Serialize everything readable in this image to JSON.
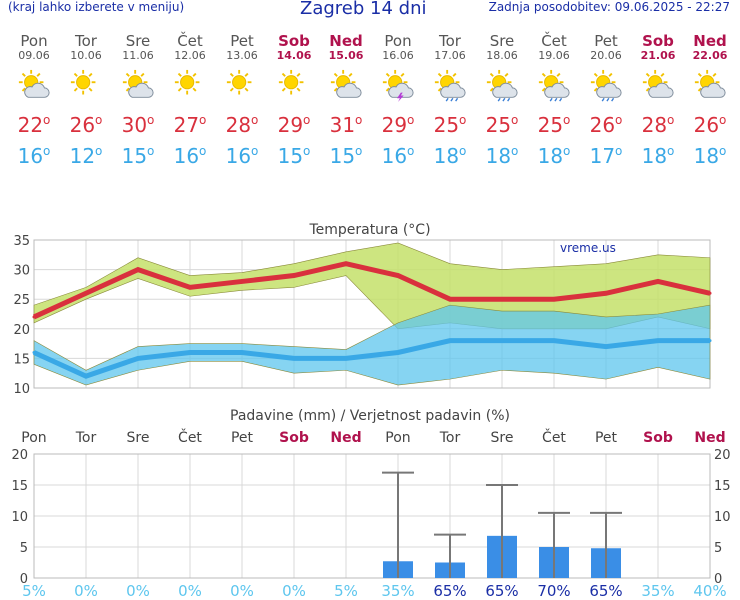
{
  "header": {
    "menu_hint": "(kraj lahko izberete v meniju)",
    "title": "Zagreb 14 dni",
    "updated": "Zadnja posodobitev: 09.06.2025 - 22:27"
  },
  "days": [
    {
      "name": "Pon",
      "date": "09.06",
      "weekend": false,
      "icon": "sun-cloud-icon",
      "max": "22",
      "min": "16"
    },
    {
      "name": "Tor",
      "date": "10.06",
      "weekend": false,
      "icon": "sun-icon",
      "max": "26",
      "min": "12"
    },
    {
      "name": "Sre",
      "date": "11.06",
      "weekend": false,
      "icon": "sun-cloud-icon",
      "max": "30",
      "min": "15"
    },
    {
      "name": "Čet",
      "date": "12.06",
      "weekend": false,
      "icon": "sun-icon",
      "max": "27",
      "min": "16"
    },
    {
      "name": "Pet",
      "date": "13.06",
      "weekend": false,
      "icon": "sun-icon",
      "max": "28",
      "min": "16"
    },
    {
      "name": "Sob",
      "date": "14.06",
      "weekend": true,
      "icon": "sun-icon",
      "max": "29",
      "min": "15"
    },
    {
      "name": "Ned",
      "date": "15.06",
      "weekend": true,
      "icon": "sun-cloud-icon",
      "max": "31",
      "min": "15"
    },
    {
      "name": "Pon",
      "date": "16.06",
      "weekend": false,
      "icon": "thunderstorm-icon",
      "max": "29",
      "min": "16"
    },
    {
      "name": "Tor",
      "date": "17.06",
      "weekend": false,
      "icon": "sun-rain-icon",
      "max": "25",
      "min": "18"
    },
    {
      "name": "Sre",
      "date": "18.06",
      "weekend": false,
      "icon": "sun-rain-icon",
      "max": "25",
      "min": "18"
    },
    {
      "name": "Čet",
      "date": "19.06",
      "weekend": false,
      "icon": "sun-rain-icon",
      "max": "25",
      "min": "18"
    },
    {
      "name": "Pet",
      "date": "20.06",
      "weekend": false,
      "icon": "sun-rain-icon",
      "max": "26",
      "min": "17"
    },
    {
      "name": "Sob",
      "date": "21.06",
      "weekend": true,
      "icon": "sun-cloud-icon",
      "max": "28",
      "min": "18"
    },
    {
      "name": "Ned",
      "date": "22.06",
      "weekend": true,
      "icon": "sun-cloud-icon",
      "max": "26",
      "min": "18"
    }
  ],
  "degree_symbol": "o",
  "colors": {
    "max": "#d9303d",
    "min": "#39a8e6",
    "max_band": "#c4e06a",
    "min_band": "#5ec6ee",
    "overlap": "#7fc87e",
    "precip": "#3a8ee6",
    "whisker": "#777777",
    "weekend": "#b0124d"
  },
  "chart_data": [
    {
      "type": "line",
      "title": "Temperatura (°C)",
      "watermark": "vreme.us",
      "ylim": [
        10,
        35
      ],
      "yticks": [
        "10",
        "15",
        "20",
        "25",
        "30",
        "35"
      ],
      "series": [
        {
          "name": "max",
          "values": [
            22,
            26,
            30,
            27,
            28,
            29,
            31,
            29,
            25,
            25,
            25,
            26,
            28,
            26
          ],
          "upper": [
            24,
            27,
            32,
            29,
            29.5,
            31,
            33,
            34.5,
            31,
            30,
            30.5,
            31,
            32.5,
            32
          ],
          "lower": [
            21,
            25,
            28.5,
            25.5,
            26.5,
            27,
            29,
            20,
            21,
            20,
            20,
            20,
            22,
            20
          ]
        },
        {
          "name": "min",
          "values": [
            16,
            12,
            15,
            16,
            16,
            15,
            15,
            16,
            18,
            18,
            18,
            17,
            18,
            18
          ],
          "upper": [
            18,
            13,
            17,
            17.5,
            17.5,
            17,
            16.5,
            21,
            24,
            23,
            23,
            22,
            22.5,
            24
          ],
          "lower": [
            14,
            10.5,
            13,
            14.5,
            14.5,
            12.5,
            13,
            10.5,
            11.5,
            13,
            12.5,
            11.5,
            13.5,
            11.5
          ]
        }
      ]
    },
    {
      "type": "bar",
      "title": "Padavine (mm) / Verjetnost padavin (%)",
      "categories": [
        "Pon",
        "Tor",
        "Sre",
        "Čet",
        "Pet",
        "Sob",
        "Ned",
        "Pon",
        "Tor",
        "Sre",
        "Čet",
        "Pet",
        "Sob",
        "Ned"
      ],
      "values": [
        0,
        0,
        0,
        0,
        0,
        0,
        0,
        2.7,
        2.5,
        6.8,
        5.0,
        4.8,
        0,
        0
      ],
      "max_values": [
        0,
        0,
        0,
        0,
        0,
        0,
        0,
        17,
        7,
        15,
        10.5,
        10.5,
        0,
        0
      ],
      "probability": [
        "5%",
        "0%",
        "0%",
        "0%",
        "0%",
        "0%",
        "5%",
        "35%",
        "65%",
        "65%",
        "70%",
        "65%",
        "35%",
        "40%"
      ],
      "ylim": [
        0,
        20
      ],
      "yticks": [
        "0",
        "5",
        "10",
        "15",
        "20"
      ]
    }
  ]
}
